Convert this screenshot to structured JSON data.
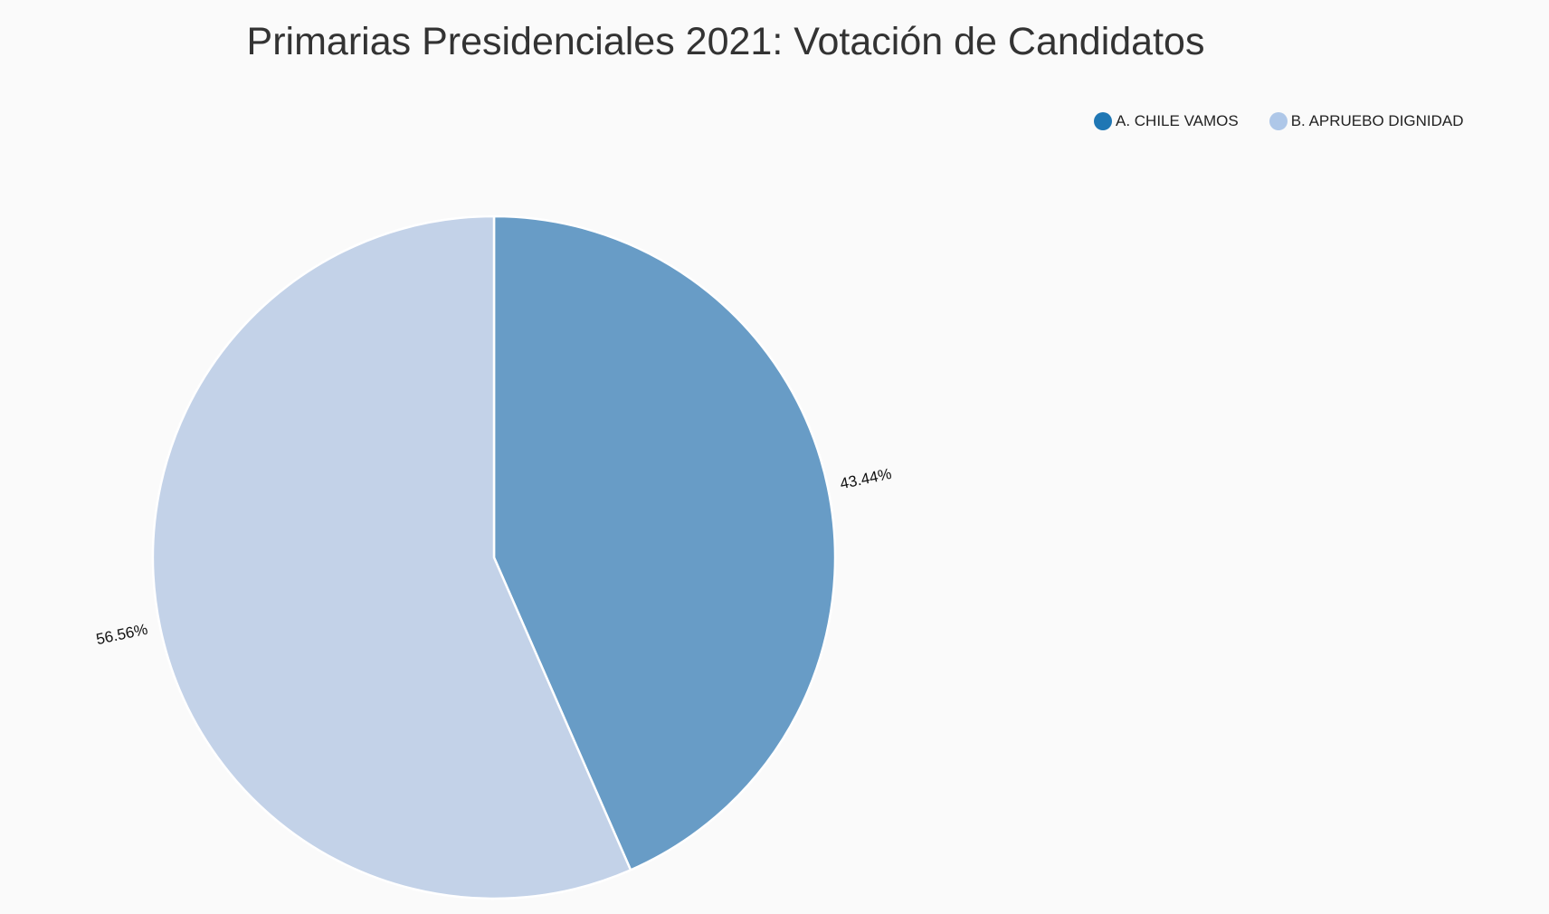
{
  "chart_data": {
    "type": "pie",
    "title": "Primarias Presidenciales 2021: Votación de Candidatos",
    "categories": [
      "A. CHILE VAMOS",
      "B. APRUEBO DIGNIDAD"
    ],
    "values": [
      43.44,
      56.56
    ],
    "labels": [
      "43.44%",
      "56.56%"
    ],
    "colors": {
      "legend": [
        "#1f77b4",
        "#aec7e8"
      ],
      "slices": [
        "#689cc6",
        "#c3d2e8"
      ]
    },
    "legend_placement": "top-right",
    "start_angle": "12 o'clock",
    "direction": "clockwise"
  }
}
